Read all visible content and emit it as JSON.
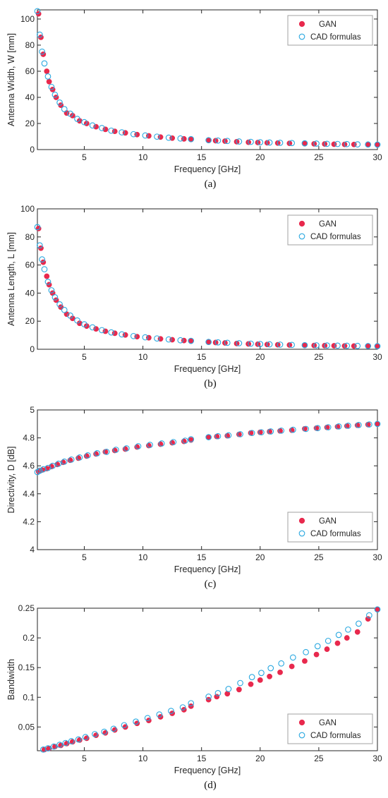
{
  "colors": {
    "gan": "#e8294d",
    "cad": "#2aa8e0",
    "axis": "#262626",
    "box": "#a0a0a0"
  },
  "legend": {
    "gan_label": "GAN",
    "cad_label": "CAD formulas"
  },
  "chart_data": [
    {
      "type": "scatter",
      "panel_label": "(a)",
      "xlabel": "Frequency [GHz]",
      "ylabel": "Antenna Width, W [mm]",
      "xlim": [
        1,
        30
      ],
      "ylim": [
        0,
        107
      ],
      "xticks": [
        5,
        10,
        15,
        20,
        25,
        30
      ],
      "yticks": [
        0,
        20,
        40,
        60,
        80,
        100
      ],
      "legend_position": "top-right",
      "grid": false,
      "series": [
        {
          "name": "GAN",
          "marker": "filled-circle",
          "x": [
            1.1,
            1.3,
            1.5,
            1.8,
            2.0,
            2.3,
            2.6,
            3.0,
            3.5,
            4.0,
            4.6,
            5.2,
            6.0,
            6.8,
            7.6,
            8.5,
            9.5,
            10.5,
            11.5,
            12.5,
            13.5,
            14.1,
            15.6,
            16.2,
            17.0,
            18.0,
            19.0,
            19.8,
            20.6,
            21.5,
            22.5,
            23.8,
            24.6,
            25.5,
            26.3,
            27.2,
            28.0,
            29.2,
            30.0
          ],
          "y": [
            104,
            86,
            73,
            60,
            52,
            46,
            40,
            34,
            28,
            26,
            22,
            20,
            17.5,
            15.5,
            14,
            12.8,
            11.5,
            10.5,
            9.6,
            8.8,
            8.2,
            7.8,
            7.0,
            6.8,
            6.5,
            6.0,
            5.6,
            5.4,
            5.2,
            5.0,
            4.8,
            4.5,
            4.4,
            4.3,
            4.1,
            4.0,
            3.9,
            3.7,
            3.6
          ]
        },
        {
          "name": "CAD formulas",
          "marker": "open-circle",
          "x": [
            1.0,
            1.2,
            1.4,
            1.6,
            1.9,
            2.2,
            2.5,
            2.9,
            3.3,
            3.8,
            4.4,
            5.0,
            5.7,
            6.5,
            7.3,
            8.2,
            9.2,
            10.2,
            11.2,
            12.2,
            13.2,
            14.1,
            15.6,
            16.4,
            17.2,
            18.2,
            19.2,
            20.0,
            20.8,
            21.7,
            22.7,
            23.8,
            24.8,
            25.7,
            26.6,
            27.4,
            28.3,
            29.2,
            30.0
          ],
          "y": [
            106,
            88,
            75,
            66,
            56,
            48,
            42,
            36,
            31,
            27.5,
            23.5,
            21,
            18.5,
            16.5,
            14.5,
            13.2,
            11.8,
            10.8,
            9.9,
            9.1,
            8.5,
            8.0,
            7.2,
            6.9,
            6.6,
            6.2,
            5.9,
            5.6,
            5.4,
            5.2,
            5.0,
            4.8,
            4.6,
            4.4,
            4.3,
            4.2,
            4.0,
            3.9,
            3.8
          ]
        }
      ]
    },
    {
      "type": "scatter",
      "panel_label": "(b)",
      "xlabel": "Frequency [GHz]",
      "ylabel": "Antenna Length, L [mm]",
      "xlim": [
        1,
        30
      ],
      "ylim": [
        0,
        100
      ],
      "xticks": [
        5,
        10,
        15,
        20,
        25,
        30
      ],
      "yticks": [
        0,
        20,
        40,
        60,
        80,
        100
      ],
      "legend_position": "top-right",
      "grid": false,
      "series": [
        {
          "name": "GAN",
          "marker": "filled-circle",
          "x": [
            1.1,
            1.3,
            1.5,
            1.8,
            2.0,
            2.3,
            2.6,
            3.0,
            3.5,
            4.0,
            4.6,
            5.2,
            6.0,
            6.8,
            7.6,
            8.5,
            9.5,
            10.5,
            11.5,
            12.5,
            13.5,
            14.1,
            15.6,
            16.2,
            17.0,
            18.0,
            19.0,
            19.8,
            20.6,
            21.5,
            22.5,
            23.8,
            24.6,
            25.5,
            26.3,
            27.2,
            28.0,
            29.2,
            30.0
          ],
          "y": [
            86,
            72,
            62,
            52,
            46,
            40,
            35,
            30,
            25,
            22,
            18.5,
            16.5,
            14.5,
            12.8,
            11.4,
            10.2,
            9.0,
            8.2,
            7.4,
            6.8,
            6.2,
            5.8,
            5.0,
            4.8,
            4.5,
            4.1,
            3.8,
            3.6,
            3.4,
            3.2,
            3.0,
            2.8,
            2.7,
            2.6,
            2.5,
            2.4,
            2.3,
            2.2,
            2.1
          ]
        },
        {
          "name": "CAD formulas",
          "marker": "open-circle",
          "x": [
            1.0,
            1.2,
            1.4,
            1.6,
            1.9,
            2.2,
            2.5,
            2.9,
            3.3,
            3.8,
            4.4,
            5.0,
            5.7,
            6.5,
            7.3,
            8.2,
            9.2,
            10.2,
            11.2,
            12.2,
            13.2,
            14.1,
            15.6,
            16.4,
            17.2,
            18.2,
            19.2,
            20.0,
            20.8,
            21.7,
            22.7,
            23.8,
            24.8,
            25.7,
            26.6,
            27.4,
            28.3,
            29.2,
            30.0
          ],
          "y": [
            87,
            74,
            64,
            57,
            48,
            42,
            37,
            32,
            28,
            24,
            20.5,
            17.8,
            15.6,
            13.6,
            12.0,
            10.6,
            9.4,
            8.5,
            7.7,
            7.0,
            6.4,
            6.0,
            5.2,
            4.9,
            4.6,
            4.3,
            4.0,
            3.7,
            3.5,
            3.3,
            3.1,
            2.9,
            2.8,
            2.7,
            2.6,
            2.5,
            2.4,
            2.3,
            2.2
          ]
        }
      ]
    },
    {
      "type": "scatter",
      "panel_label": "(c)",
      "xlabel": "Frequency [GHz]",
      "ylabel": "Directivity, D [dB]",
      "xlim": [
        1,
        30
      ],
      "ylim": [
        4,
        5
      ],
      "xticks": [
        5,
        10,
        15,
        20,
        25,
        30
      ],
      "yticks": [
        4,
        4.2,
        4.4,
        4.6,
        4.8,
        5
      ],
      "legend_position": "bottom-right",
      "grid": false,
      "series": [
        {
          "name": "GAN",
          "marker": "filled-circle",
          "x": [
            1.1,
            1.4,
            1.8,
            2.2,
            2.7,
            3.2,
            3.8,
            4.5,
            5.2,
            6.0,
            6.8,
            7.6,
            8.5,
            9.5,
            10.5,
            11.5,
            12.5,
            13.5,
            14.1,
            15.6,
            16.3,
            17.2,
            18.2,
            19.2,
            20.0,
            20.8,
            21.7,
            22.7,
            23.8,
            24.8,
            25.7,
            26.6,
            27.4,
            28.3,
            29.2,
            30.0
          ],
          "y": [
            4.56,
            4.57,
            4.58,
            4.595,
            4.61,
            4.625,
            4.64,
            4.655,
            4.67,
            4.685,
            4.7,
            4.71,
            4.72,
            4.735,
            4.745,
            4.755,
            4.765,
            4.775,
            4.785,
            4.805,
            4.81,
            4.815,
            4.825,
            4.835,
            4.84,
            4.845,
            4.85,
            4.855,
            4.865,
            4.87,
            4.875,
            4.88,
            4.885,
            4.89,
            4.895,
            4.9
          ]
        },
        {
          "name": "CAD formulas",
          "marker": "open-circle",
          "x": [
            1.0,
            1.2,
            1.5,
            1.9,
            2.3,
            2.8,
            3.3,
            3.9,
            4.6,
            5.3,
            6.1,
            6.9,
            7.7,
            8.6,
            9.6,
            10.6,
            11.6,
            12.6,
            13.6,
            14.1,
            15.6,
            16.4,
            17.3,
            18.3,
            19.3,
            20.1,
            20.9,
            21.8,
            22.8,
            23.9,
            24.9,
            25.8,
            26.7,
            27.5,
            28.4,
            29.3,
            30.0
          ],
          "y": [
            4.555,
            4.565,
            4.575,
            4.585,
            4.6,
            4.615,
            4.63,
            4.645,
            4.66,
            4.675,
            4.69,
            4.7,
            4.715,
            4.725,
            4.74,
            4.75,
            4.76,
            4.77,
            4.78,
            4.79,
            4.805,
            4.812,
            4.818,
            4.826,
            4.835,
            4.84,
            4.846,
            4.852,
            4.858,
            4.864,
            4.87,
            4.876,
            4.882,
            4.887,
            4.892,
            4.896,
            4.9
          ]
        }
      ]
    },
    {
      "type": "scatter",
      "panel_label": "(d)",
      "xlabel": "Frequency [GHz]",
      "ylabel": "Bandwidth",
      "xlim": [
        1,
        30
      ],
      "ylim": [
        0.01,
        0.25
      ],
      "xticks": [
        5,
        10,
        15,
        20,
        25,
        30
      ],
      "yticks": [
        0.05,
        0.1,
        0.15,
        0.2,
        0.25
      ],
      "legend_position": "bottom-right",
      "grid": false,
      "series": [
        {
          "name": "GAN",
          "marker": "filled-circle",
          "x": [
            1.6,
            2.0,
            2.5,
            3.0,
            3.5,
            4.0,
            4.6,
            5.2,
            6.0,
            6.8,
            7.6,
            8.5,
            9.5,
            10.5,
            11.5,
            12.5,
            13.5,
            14.1,
            15.6,
            16.3,
            17.2,
            18.2,
            19.2,
            20.0,
            20.8,
            21.7,
            22.7,
            23.8,
            24.8,
            25.7,
            26.6,
            27.4,
            28.3,
            29.2,
            30.0
          ],
          "y": [
            0.012,
            0.014,
            0.017,
            0.019,
            0.022,
            0.025,
            0.028,
            0.031,
            0.036,
            0.04,
            0.045,
            0.05,
            0.056,
            0.061,
            0.067,
            0.073,
            0.079,
            0.085,
            0.096,
            0.101,
            0.106,
            0.113,
            0.122,
            0.129,
            0.135,
            0.142,
            0.152,
            0.161,
            0.172,
            0.181,
            0.191,
            0.2,
            0.21,
            0.232,
            0.248
          ]
        },
        {
          "name": "CAD formulas",
          "marker": "open-circle",
          "x": [
            1.5,
            1.9,
            2.4,
            2.9,
            3.4,
            3.9,
            4.5,
            5.1,
            5.9,
            6.7,
            7.5,
            8.4,
            9.4,
            10.4,
            11.4,
            12.4,
            13.4,
            14.1,
            15.6,
            16.4,
            17.3,
            18.3,
            19.3,
            20.1,
            20.9,
            21.8,
            22.8,
            23.9,
            24.9,
            25.8,
            26.7,
            27.5,
            28.4,
            29.3,
            30.0
          ],
          "y": [
            0.012,
            0.014,
            0.017,
            0.02,
            0.023,
            0.026,
            0.029,
            0.033,
            0.038,
            0.042,
            0.047,
            0.053,
            0.059,
            0.065,
            0.071,
            0.077,
            0.083,
            0.09,
            0.101,
            0.107,
            0.114,
            0.124,
            0.134,
            0.141,
            0.149,
            0.157,
            0.167,
            0.176,
            0.186,
            0.195,
            0.205,
            0.214,
            0.224,
            0.238,
            0.248
          ]
        }
      ]
    }
  ]
}
